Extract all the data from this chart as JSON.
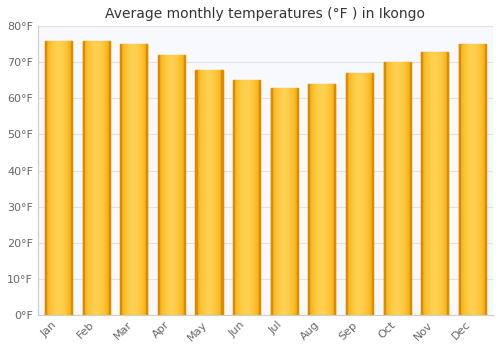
{
  "title": "Average monthly temperatures (°F ) in Ikongo",
  "months": [
    "Jan",
    "Feb",
    "Mar",
    "Apr",
    "May",
    "Jun",
    "Jul",
    "Aug",
    "Sep",
    "Oct",
    "Nov",
    "Dec"
  ],
  "values": [
    76,
    76,
    75,
    72,
    68,
    65,
    63,
    64,
    67,
    70,
    73,
    75
  ],
  "bar_color_left": "#F5A800",
  "bar_color_center": "#FFD050",
  "bar_color_right": "#F5A800",
  "ylim": [
    0,
    80
  ],
  "yticks": [
    0,
    10,
    20,
    30,
    40,
    50,
    60,
    70,
    80
  ],
  "ytick_labels": [
    "0°F",
    "10°F",
    "20°F",
    "30°F",
    "40°F",
    "50°F",
    "60°F",
    "70°F",
    "80°F"
  ],
  "background_color": "#FFFFFF",
  "plot_bg_color": "#F8F8FF",
  "grid_color": "#E0E0E8",
  "title_fontsize": 10,
  "tick_fontsize": 8,
  "font_family": "DejaVu Sans"
}
